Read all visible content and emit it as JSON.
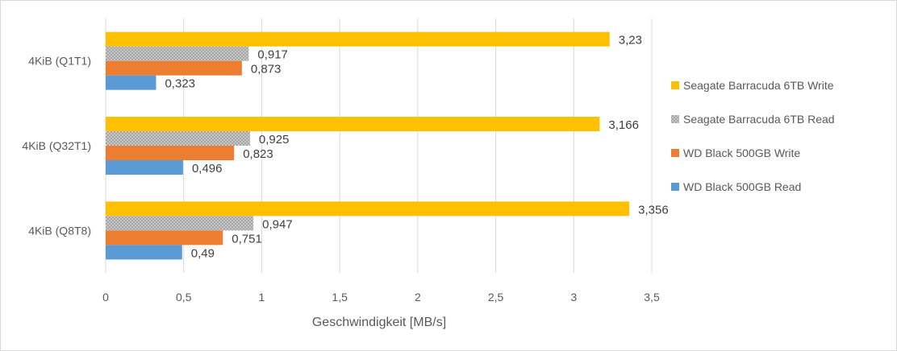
{
  "chart_data": {
    "type": "bar",
    "orientation": "horizontal",
    "categories": [
      "4KiB (Q1T1)",
      "4KiB (Q32T1)",
      "4KiB (Q8T8)"
    ],
    "series": [
      {
        "name": "Seagate Barracuda 6TB Write",
        "color": "#ffc000",
        "values": [
          3.23,
          3.166,
          3.356
        ],
        "labels": [
          "3,23",
          "3,166",
          "3,356"
        ]
      },
      {
        "name": "Seagate Barracuda 6TB Read",
        "color": "#a5a5a5",
        "pattern": "checker",
        "values": [
          0.917,
          0.925,
          0.947
        ],
        "labels": [
          "0,917",
          "0,925",
          "0,947"
        ]
      },
      {
        "name": "WD Black 500GB Write",
        "color": "#ed7d31",
        "values": [
          0.873,
          0.823,
          0.751
        ],
        "labels": [
          "0,873",
          "0,823",
          "0,751"
        ]
      },
      {
        "name": "WD Black 500GB Read",
        "color": "#5b9bd5",
        "values": [
          0.323,
          0.496,
          0.49
        ],
        "labels": [
          "0,323",
          "0,496",
          "0,49"
        ]
      }
    ],
    "xticks": [
      "0",
      "0,5",
      "1",
      "1,5",
      "2",
      "2,5",
      "3",
      "3,5"
    ],
    "xlim": [
      0,
      3.5
    ],
    "xlabel": "Geschwindigkeit [MB/s]",
    "grid": true,
    "legend_position": "right"
  }
}
